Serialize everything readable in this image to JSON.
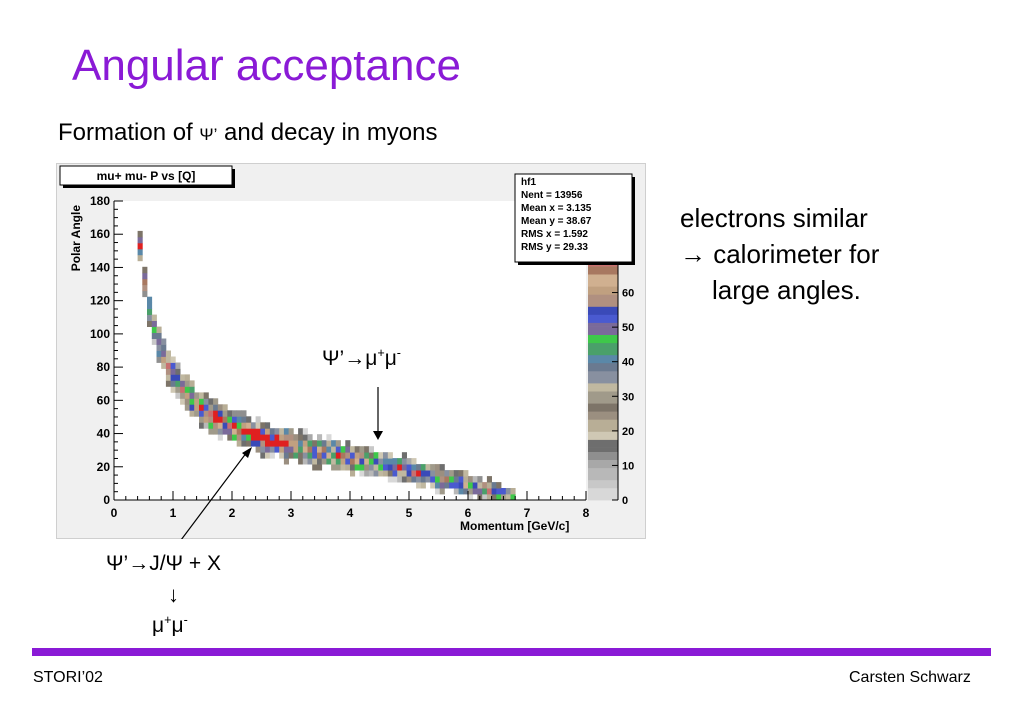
{
  "slide": {
    "title": "Angular acceptance",
    "subtitle_pre": "Formation of ",
    "subtitle_psi": "Ψ’",
    "subtitle_post": " and decay in myons"
  },
  "notes": {
    "line1": "electrons similar",
    "line2": "→ calorimeter for",
    "line3": "large angles."
  },
  "annotations": {
    "psi_to_jpsi": "Ψ’→J/Ψ + X",
    "down_arrow": "↓",
    "mu_plus": "μ",
    "mu_minus": "μ",
    "sup_plus": "+",
    "sup_minus": "-",
    "psi_to_mumu_prefix": "Ψ’→"
  },
  "footer": {
    "left": "STORI’02",
    "right": "Carsten Schwarz"
  },
  "colors": {
    "accent": "#8a1ad6"
  },
  "chart_data": {
    "type": "heatmap",
    "title": "mu+ mu- P vs [Q]",
    "xlabel": "Momentum [GeV/c]",
    "ylabel": "Polar Angle",
    "xlim": [
      0,
      8
    ],
    "ylim": [
      0,
      180
    ],
    "x_ticks": [
      "0",
      "1",
      "2",
      "3",
      "4",
      "5",
      "6",
      "7",
      "8"
    ],
    "y_ticks": [
      "0",
      "20",
      "40",
      "60",
      "80",
      "100",
      "120",
      "140",
      "160",
      "180"
    ],
    "band_centerline": [
      {
        "x": 0.4,
        "y": 168
      },
      {
        "x": 0.45,
        "y": 150
      },
      {
        "x": 0.5,
        "y": 135
      },
      {
        "x": 0.6,
        "y": 115
      },
      {
        "x": 0.8,
        "y": 90
      },
      {
        "x": 1.0,
        "y": 75
      },
      {
        "x": 1.3,
        "y": 61
      },
      {
        "x": 1.6,
        "y": 52
      },
      {
        "x": 2.0,
        "y": 44
      },
      {
        "x": 2.5,
        "y": 38
      },
      {
        "x": 3.0,
        "y": 33
      },
      {
        "x": 3.5,
        "y": 29
      },
      {
        "x": 4.0,
        "y": 26
      },
      {
        "x": 4.5,
        "y": 22
      },
      {
        "x": 5.0,
        "y": 18
      },
      {
        "x": 5.5,
        "y": 13
      },
      {
        "x": 6.0,
        "y": 9
      },
      {
        "x": 6.5,
        "y": 5
      },
      {
        "x": 6.8,
        "y": 2
      }
    ],
    "colorbar": {
      "ticks": [
        "0",
        "10",
        "20",
        "30",
        "40",
        "50",
        "60"
      ],
      "range": [
        0,
        70
      ]
    },
    "stats": {
      "name": "hf1",
      "rows": [
        {
          "label": "Nent = ",
          "value": "13956"
        },
        {
          "label": "Mean x = ",
          "value": "3.135"
        },
        {
          "label": "Mean y = ",
          "value": "38.67"
        },
        {
          "label": "RMS x = ",
          "value": "1.592"
        },
        {
          "label": "RMS y = ",
          "value": "29.33"
        }
      ]
    }
  }
}
